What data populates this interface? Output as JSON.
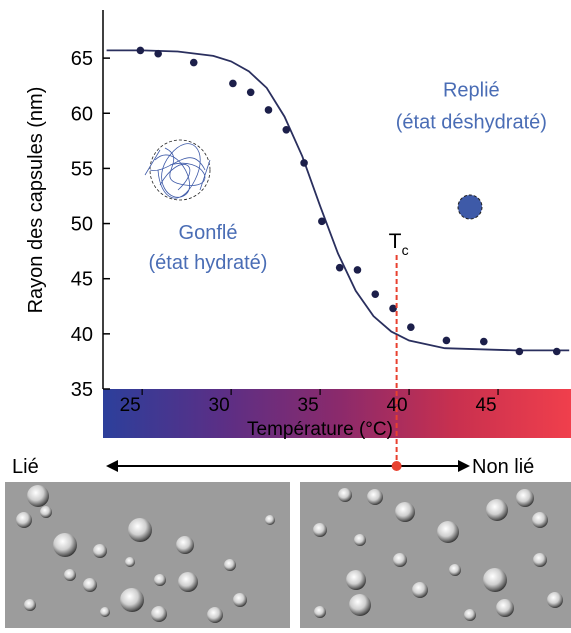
{
  "chart_data": {
    "type": "scatter",
    "ylabel": "Rayon des capsules (nm)",
    "xlabel": "Température (°C)",
    "xlim": [
      22.8,
      49.1
    ],
    "ylim": [
      35,
      69
    ],
    "xticks": [
      25,
      30,
      35,
      40,
      45
    ],
    "yticks": [
      35,
      40,
      45,
      50,
      55,
      60,
      65
    ],
    "points": {
      "color": "#1c1f4a",
      "x": [
        24.9,
        25.9,
        27.9,
        30.1,
        31.1,
        32.1,
        33.1,
        34.1,
        35.1,
        36.1,
        37.1,
        38.1,
        39.1,
        40.1,
        42.1,
        44.2,
        46.2,
        48.3
      ],
      "values": [
        65.7,
        65.4,
        64.6,
        62.7,
        61.9,
        60.3,
        58.5,
        55.5,
        50.2,
        46.0,
        45.8,
        43.6,
        42.3,
        40.6,
        39.4,
        39.3,
        38.4,
        38.4
      ]
    },
    "fit": {
      "color": "#2a2f5e",
      "x": [
        23,
        25,
        27,
        29,
        30,
        31,
        32,
        33,
        34,
        35,
        36,
        37,
        38,
        39,
        40,
        42,
        44,
        46,
        49
      ],
      "values": [
        65.7,
        65.7,
        65.6,
        65.2,
        64.7,
        63.8,
        62.3,
        59.7,
        56.1,
        51.6,
        47.3,
        43.9,
        41.6,
        40.2,
        39.4,
        38.7,
        38.6,
        38.5,
        38.5
      ]
    },
    "colorbar": [
      "#2c3f9b",
      "#5a2f86",
      "#8a2a6c",
      "#c8304f",
      "#f03f4c"
    ],
    "transition": {
      "x": 39.3,
      "label": "T",
      "subscript": "c",
      "color": "#e8412f"
    },
    "annotations": [
      {
        "text": "Replié",
        "x": 43.5,
        "y": 61.5
      },
      {
        "text": "(état déshydraté)",
        "x": 43.5,
        "y": 58.6
      },
      {
        "text": "Gonflé",
        "x": 28.7,
        "y": 48.6
      },
      {
        "text": "(état hydraté)",
        "x": 28.7,
        "y": 45.9
      }
    ],
    "annotation_color": "#4a6db5",
    "left_label": "Lié",
    "right_label": "Non lié"
  }
}
